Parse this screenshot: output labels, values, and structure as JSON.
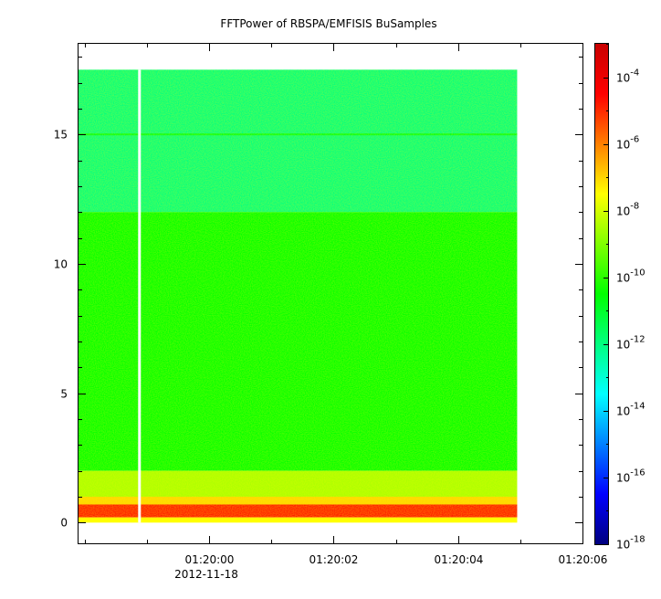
{
  "chart_data": {
    "type": "heatmap",
    "title": "FFTPower of RBSPA/EMFISIS  BuSamples",
    "x_tick_labels": [
      "01:20:00",
      "01:20:02",
      "01:20:04",
      "01:20:06"
    ],
    "x_tick_seconds": [
      0,
      2,
      4,
      6
    ],
    "x_date_label": "2012-11-18",
    "xlim_seconds": [
      -2.1,
      6.0
    ],
    "x_data_range_seconds": [
      -2.1,
      4.95
    ],
    "x_gap_seconds": -1.12,
    "y_ticks": [
      0,
      5,
      10,
      15
    ],
    "ylim": [
      -0.8,
      18.5
    ],
    "y_data_range": [
      0,
      17.5
    ],
    "colorbar": {
      "scale": "log",
      "range": [
        1e-18,
        0.001
      ],
      "ticks": [
        {
          "base": "10",
          "exp": "-4",
          "value": -4
        },
        {
          "base": "10",
          "exp": "-6",
          "value": -6
        },
        {
          "base": "10",
          "exp": "-8",
          "value": -8
        },
        {
          "base": "10",
          "exp": "-10",
          "value": -10
        },
        {
          "base": "10",
          "exp": "-12",
          "value": -12
        },
        {
          "base": "10",
          "exp": "-14",
          "value": -14
        },
        {
          "base": "10",
          "exp": "-16",
          "value": -16
        },
        {
          "base": "10",
          "exp": "-18",
          "value": -18
        }
      ],
      "colormap": [
        "#00007f",
        "#0000ff",
        "#0080ff",
        "#00ffff",
        "#00ff80",
        "#00ff00",
        "#80ff00",
        "#ffff00",
        "#ff8000",
        "#ff0000",
        "#c80000"
      ]
    },
    "bands": [
      {
        "y0": 12.0,
        "y1": 17.5,
        "log_power": -12.0
      },
      {
        "y0": 2.0,
        "y1": 12.0,
        "log_power": -10.5
      },
      {
        "y0": 1.0,
        "y1": 2.0,
        "log_power": -8.5
      },
      {
        "y0": 0.7,
        "y1": 1.0,
        "log_power": -7.0
      },
      {
        "y0": 0.2,
        "y1": 0.7,
        "log_power": -4.8
      },
      {
        "y0": 0.0,
        "y1": 0.2,
        "log_power": -7.5
      }
    ],
    "line_features": [
      {
        "y": 15.0,
        "log_power": -10.8
      }
    ]
  }
}
